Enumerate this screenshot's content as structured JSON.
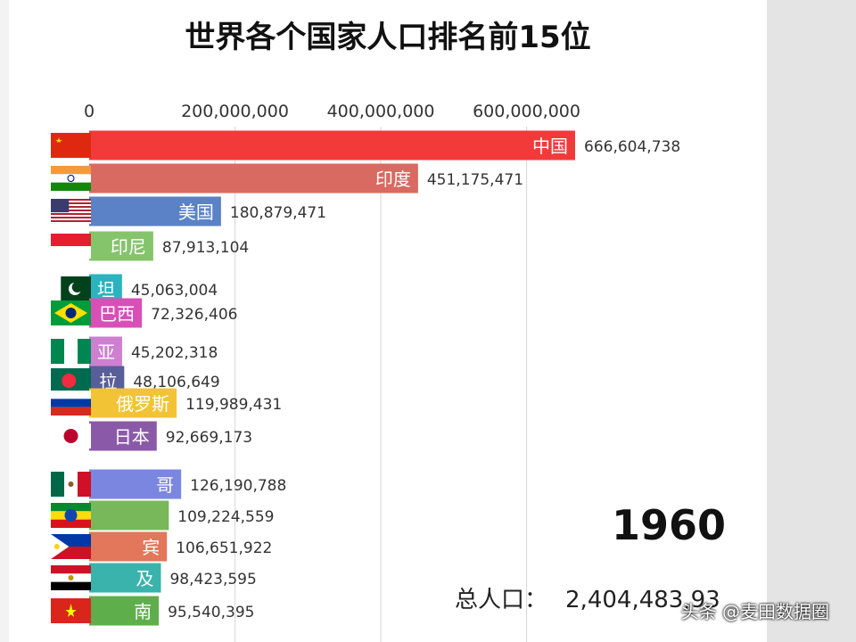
{
  "title": "世界各个国家人口排名前15位",
  "year": "1960",
  "total_label": "总人口：",
  "total_value": "2,404,483,93",
  "watermark": "头条 @麦田数据圈",
  "chart_data": {
    "type": "bar",
    "orientation": "horizontal",
    "title": "世界各个国家人口排名前15位",
    "xlim": [
      0,
      700000000
    ],
    "xticks": [
      0,
      200000000,
      400000000,
      600000000
    ],
    "xtick_labels": [
      "0",
      "200,000,000",
      "400,000,000",
      "600,000,000"
    ],
    "grid": true,
    "bars": [
      {
        "label": "中国",
        "value": 666604738,
        "value_label": "666,604,738",
        "color": "#f23a3a",
        "flag": "china"
      },
      {
        "label": "印度",
        "value": 451175471,
        "value_label": "451,175,471",
        "color": "#d86a62",
        "flag": "india"
      },
      {
        "label": "美国",
        "value": 180879471,
        "value_label": "180,879,471",
        "color": "#5b82c6",
        "flag": "usa"
      },
      {
        "label": "印尼",
        "value": 87913104,
        "value_label": "87,913,104",
        "color": "#86c46c",
        "flag": "indonesia"
      },
      {
        "label": "坦",
        "value": 45063004,
        "value_label": "45,063,004",
        "color": "#2bb3c0",
        "flag": "pakistan"
      },
      {
        "label": "巴西",
        "value": 72326406,
        "value_label": "72,326,406",
        "color": "#d94fb7",
        "flag": "brazil"
      },
      {
        "label": "亚",
        "value": 45202318,
        "value_label": "45,202,318",
        "color": "#cf7fd0",
        "flag": "nigeria"
      },
      {
        "label": "拉",
        "value": 48106649,
        "value_label": "48,106,649",
        "color": "#585e99",
        "flag": "bangladesh"
      },
      {
        "label": "俄罗斯",
        "value": 119989431,
        "value_label": "119,989,431",
        "color": "#f2c334",
        "flag": "russia"
      },
      {
        "label": "日本",
        "value": 92669173,
        "value_label": "92,669,173",
        "color": "#8a5aa8",
        "flag": "japan"
      },
      {
        "label": "哥",
        "value": 126190788,
        "value_label": "126,190,788",
        "color": "#7b86e0",
        "flag": "mexico"
      },
      {
        "label": "",
        "value": 109224559,
        "value_label": "109,224,559",
        "color": "#79b85a",
        "flag": "ethiopia"
      },
      {
        "label": "宾",
        "value": 106651922,
        "value_label": "106,651,922",
        "color": "#e2775b",
        "flag": "philippines"
      },
      {
        "label": "及",
        "value": 98423595,
        "value_label": "98,423,595",
        "color": "#39b3ab",
        "flag": "egypt"
      },
      {
        "label": "南",
        "value": 95540395,
        "value_label": "95,540,395",
        "color": "#5fae4c",
        "flag": "vietnam"
      }
    ]
  }
}
